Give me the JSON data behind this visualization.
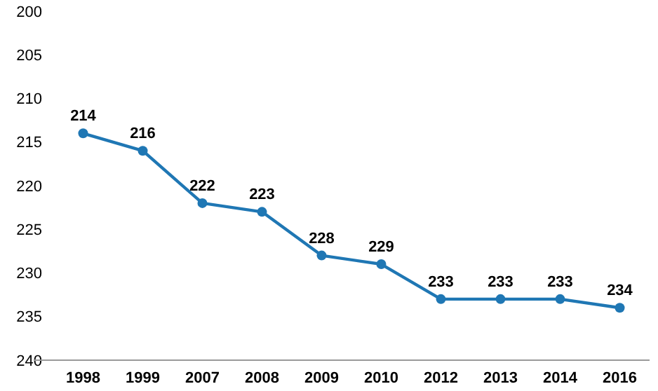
{
  "chart_data": {
    "type": "line",
    "categories": [
      "1998",
      "1999",
      "2007",
      "2008",
      "2009",
      "2010",
      "2012",
      "2013",
      "2014",
      "2016"
    ],
    "values": [
      214,
      216,
      222,
      223,
      228,
      229,
      233,
      233,
      233,
      234
    ],
    "color": "#1f77b4",
    "ylim": [
      240,
      200
    ],
    "yticks": [
      200,
      205,
      210,
      215,
      220,
      225,
      230,
      235,
      240
    ],
    "grid": false,
    "marker": "circle",
    "line_style": "solid",
    "data_labels": true
  }
}
